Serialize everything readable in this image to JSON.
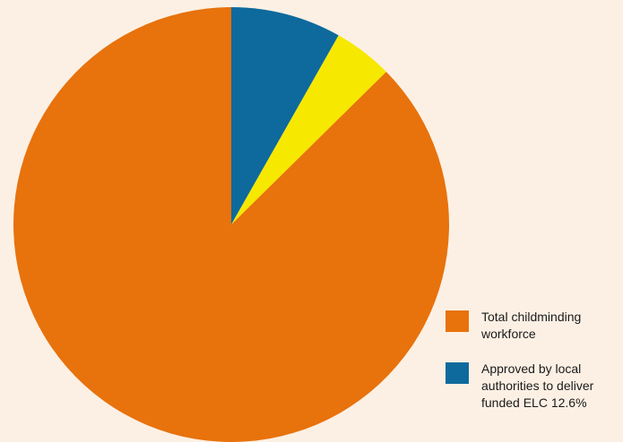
{
  "chart_data": {
    "type": "pie",
    "title": "",
    "slices": [
      {
        "label": "Approved by local authorities to deliver funded ELC 12.6%",
        "value": 8.2,
        "color": "#0e6a9c"
      },
      {
        "label": "",
        "value": 4.4,
        "color": "#f7e800"
      },
      {
        "label": "Total childminding workforce",
        "value": 87.4,
        "color": "#e8720c"
      }
    ],
    "start_angle_deg": 0,
    "direction": "clockwise"
  },
  "legend": {
    "placement": "bottom-right",
    "items": [
      {
        "label": "Total childminding workforce",
        "color": "#e8720c"
      },
      {
        "label": "Approved by local authorities to deliver funded ELC 12.6%",
        "color": "#0e6a9c"
      }
    ]
  }
}
